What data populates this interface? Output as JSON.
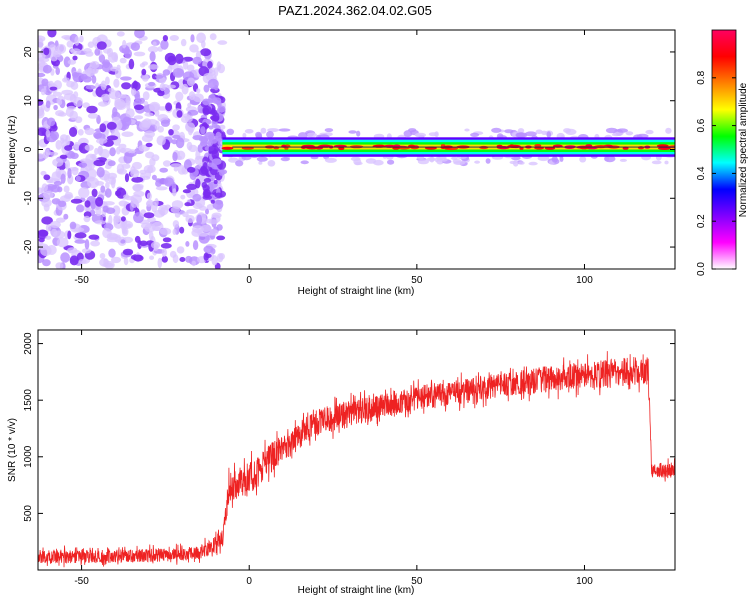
{
  "title": "PAZ1.2024.362.04.02.G05",
  "colors": {
    "snr_line": "#ee2222",
    "axis": "#000000",
    "background": "#ffffff"
  },
  "chart_data": [
    {
      "type": "heatmap",
      "xlabel": "Height of straight line (km)",
      "ylabel": "Frequency (Hz)",
      "xlim": [
        -63,
        127
      ],
      "ylim": [
        -24.5,
        24.5
      ],
      "xticks": [
        -50,
        0,
        50,
        100
      ],
      "yticks": [
        20,
        10,
        0,
        -10,
        -20
      ],
      "colorbar": {
        "label": "Normalized spectral amplitude",
        "range": [
          0,
          1
        ],
        "ticks": [
          "0.0",
          "0.2",
          "0.4",
          "0.6",
          "0.8"
        ],
        "colormap": [
          "#ffffff",
          "#ff00ff",
          "#8000ff",
          "#0000ff",
          "#00ffff",
          "#00ff00",
          "#ffff00",
          "#ff8000",
          "#ff0000",
          "#ff0060"
        ]
      },
      "features": [
        {
          "x_range": [
            -63,
            -8
          ],
          "freq_range": [
            -24,
            24
          ],
          "normalized_amplitude": 0.1,
          "description": "scattered noise"
        },
        {
          "x_range": [
            -8,
            127
          ],
          "freq_center": 0.5,
          "freq_halfwidth": 2.0,
          "normalized_amplitude": 0.9
        }
      ]
    },
    {
      "type": "line",
      "xlabel": "Height of straight line (km)",
      "ylabel": "SNR (10 * v/v)",
      "xlim": [
        -63,
        127
      ],
      "ylim": [
        0,
        2120
      ],
      "xticks": [
        -50,
        0,
        50,
        100
      ],
      "yticks": [
        500,
        1000,
        1500,
        2000
      ],
      "x": [
        -63,
        -40,
        -20,
        -15,
        -10,
        -8,
        -6,
        0,
        10,
        20,
        30,
        40,
        50,
        60,
        70,
        80,
        90,
        100,
        110,
        115,
        119,
        120,
        121,
        127
      ],
      "y": [
        120,
        120,
        140,
        150,
        230,
        270,
        720,
        800,
        1080,
        1300,
        1380,
        1450,
        1520,
        1560,
        1610,
        1650,
        1690,
        1720,
        1740,
        1760,
        1760,
        900,
        880,
        880
      ],
      "noise_amplitude": [
        60,
        60,
        60,
        60,
        80,
        90,
        130,
        150,
        130,
        120,
        120,
        110,
        110,
        110,
        110,
        110,
        120,
        120,
        130,
        130,
        130,
        70,
        70,
        70
      ]
    }
  ]
}
